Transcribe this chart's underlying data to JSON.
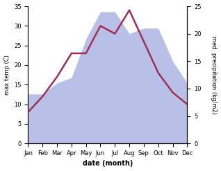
{
  "months": [
    "Jan",
    "Feb",
    "Mar",
    "Apr",
    "May",
    "Jun",
    "Jul",
    "Aug",
    "Sep",
    "Oct",
    "Nov",
    "Dec"
  ],
  "temperature": [
    8,
    12,
    17,
    23,
    23,
    30,
    28,
    34,
    26,
    18,
    13,
    10
  ],
  "precipitation": [
    9,
    9,
    11,
    12,
    19,
    24,
    24,
    20,
    21,
    21,
    15,
    11
  ],
  "temp_ylim": [
    0,
    35
  ],
  "precip_ylim": [
    0,
    25
  ],
  "temp_color": "#a03050",
  "precip_fill_color": "#b8c0e8",
  "xlabel": "date (month)",
  "ylabel_left": "max temp (C)",
  "ylabel_right": "med. precipitation (kg/m2)",
  "background_color": "#ffffff",
  "temp_linewidth": 1.8
}
